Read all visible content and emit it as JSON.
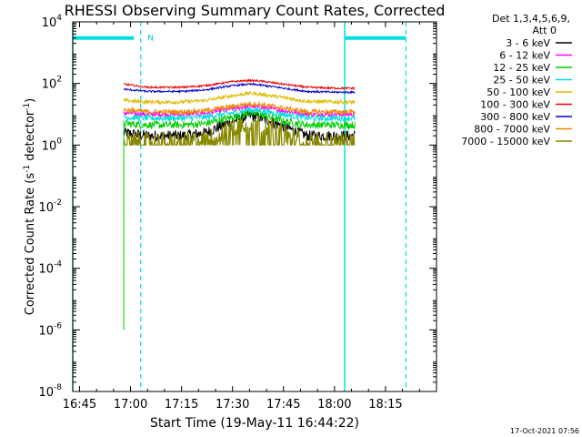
{
  "chart_data": {
    "type": "line",
    "title": "RHESSI Observing Summary Count Rates, Corrected",
    "xlabel": "Start Time (19-May-11 16:44:22)",
    "ylabel": "Corrected Count Rate (s⁻¹ detector⁻¹)",
    "ylabel_main": "Corrected Count Rate (s",
    "ylabel_exp1": "-1",
    "ylabel_mid": " detector",
    "ylabel_exp2": "-1",
    "ylabel_end": ")",
    "yscale": "log",
    "ylim": [
      1e-08,
      10000
    ],
    "xlim": [
      "16:43",
      "18:30"
    ],
    "x_ticks": [
      {
        "label": "16:45",
        "t": "16:45"
      },
      {
        "label": "17:00",
        "t": "17:00"
      },
      {
        "label": "17:15",
        "t": "17:15"
      },
      {
        "label": "17:30",
        "t": "17:30"
      },
      {
        "label": "17:45",
        "t": "17:45"
      },
      {
        "label": "18:00",
        "t": "18:00"
      },
      {
        "label": "18:15",
        "t": "18:15"
      }
    ],
    "y_ticks": [
      {
        "base": "10",
        "exp": "4",
        "value": 10000
      },
      {
        "base": "10",
        "exp": "2",
        "value": 100
      },
      {
        "base": "10",
        "exp": "0",
        "value": 1
      },
      {
        "base": "10",
        "exp": "-2",
        "value": 0.01
      },
      {
        "base": "10",
        "exp": "-4",
        "value": 0.0001
      },
      {
        "base": "10",
        "exp": "-6",
        "value": 1e-06
      },
      {
        "base": "10",
        "exp": "-8",
        "value": 1e-08
      }
    ],
    "legend": {
      "placement": "top-right",
      "header": [
        "Det 1,3,4,5,6,9,",
        "Att 0"
      ]
    },
    "series": [
      {
        "name": "3 - 6 keV",
        "color": "#000000",
        "x": [
          "16:58",
          "17:05",
          "17:15",
          "17:22",
          "17:30",
          "17:35",
          "17:38",
          "17:45",
          "17:52",
          "18:00",
          "18:06"
        ],
        "y": [
          2.5,
          2.0,
          2.0,
          2.5,
          6,
          9,
          8,
          4,
          2.0,
          2.0,
          2.0
        ]
      },
      {
        "name": "6 - 12 keV",
        "color": "#ff00ff",
        "x": [
          "16:58",
          "17:05",
          "17:15",
          "17:22",
          "17:30",
          "17:35",
          "17:38",
          "17:45",
          "17:52",
          "18:00",
          "18:06"
        ],
        "y": [
          11,
          10,
          10,
          11,
          15,
          18,
          17,
          13,
          10,
          10,
          10
        ]
      },
      {
        "name": "12 - 25 keV",
        "color": "#00cc00",
        "x": [
          "16:58",
          "17:05",
          "17:15",
          "17:22",
          "17:30",
          "17:35",
          "17:38",
          "17:45",
          "17:52",
          "18:00",
          "18:06"
        ],
        "y": [
          5,
          4.5,
          4.5,
          5,
          8,
          11,
          10,
          6,
          4.5,
          4.5,
          4.5
        ]
      },
      {
        "name": "25 - 50 keV",
        "color": "#00dddd",
        "x": [
          "16:58",
          "17:05",
          "17:15",
          "17:22",
          "17:30",
          "17:35",
          "17:38",
          "17:45",
          "17:52",
          "18:00",
          "18:06"
        ],
        "y": [
          8,
          7.5,
          7.5,
          8,
          11,
          14,
          13,
          10,
          7.5,
          7.5,
          7.5
        ]
      },
      {
        "name": "50 - 100 keV",
        "color": "#ddbb00",
        "x": [
          "16:58",
          "17:05",
          "17:15",
          "17:22",
          "17:30",
          "17:35",
          "17:38",
          "17:45",
          "17:52",
          "18:00",
          "18:06"
        ],
        "y": [
          28,
          25,
          25,
          28,
          40,
          48,
          45,
          35,
          26,
          25,
          25
        ]
      },
      {
        "name": "100 - 300 keV",
        "color": "#ee0000",
        "x": [
          "16:58",
          "17:05",
          "17:15",
          "17:22",
          "17:30",
          "17:35",
          "17:38",
          "17:45",
          "17:52",
          "18:00",
          "18:06"
        ],
        "y": [
          95,
          75,
          75,
          85,
          115,
          125,
          120,
          95,
          75,
          70,
          70
        ]
      },
      {
        "name": "300 - 800 keV",
        "color": "#0000cc",
        "x": [
          "16:58",
          "17:05",
          "17:15",
          "17:22",
          "17:30",
          "17:35",
          "17:38",
          "17:45",
          "17:52",
          "18:00",
          "18:06"
        ],
        "y": [
          65,
          55,
          55,
          62,
          85,
          95,
          90,
          70,
          55,
          52,
          52
        ]
      },
      {
        "name": "800 - 7000 keV",
        "color": "#ee8800",
        "x": [
          "16:58",
          "17:05",
          "17:15",
          "17:22",
          "17:30",
          "17:35",
          "17:38",
          "17:45",
          "17:52",
          "18:00",
          "18:06"
        ],
        "y": [
          14,
          12,
          12,
          13,
          18,
          22,
          21,
          16,
          12,
          12,
          12
        ]
      },
      {
        "name": "7000 - 15000 keV",
        "color": "#888800",
        "x": [
          "16:58",
          "17:05",
          "17:15",
          "17:22",
          "17:30",
          "17:35",
          "17:38",
          "17:45",
          "17:52",
          "18:00",
          "18:06"
        ],
        "y": [
          1.5,
          1.3,
          1.3,
          1.5,
          3.5,
          6,
          5,
          2.5,
          1.3,
          1.3,
          1.3
        ]
      }
    ],
    "green_drop": {
      "x": "16:58",
      "y_low": 1e-06
    },
    "attenuator_bars": [
      {
        "start": "16:43",
        "end": "17:01"
      },
      {
        "start": "18:03",
        "end": "18:21"
      }
    ],
    "solid_markers": [
      "16:43",
      "18:03"
    ],
    "dashed_markers": [
      "17:03",
      "18:21"
    ],
    "bar_level": 3000,
    "annotation": {
      "text": "N",
      "x": "17:05",
      "y": 3000
    }
  },
  "footer": {
    "timestamp": "17-Oct-2021 07:56"
  }
}
